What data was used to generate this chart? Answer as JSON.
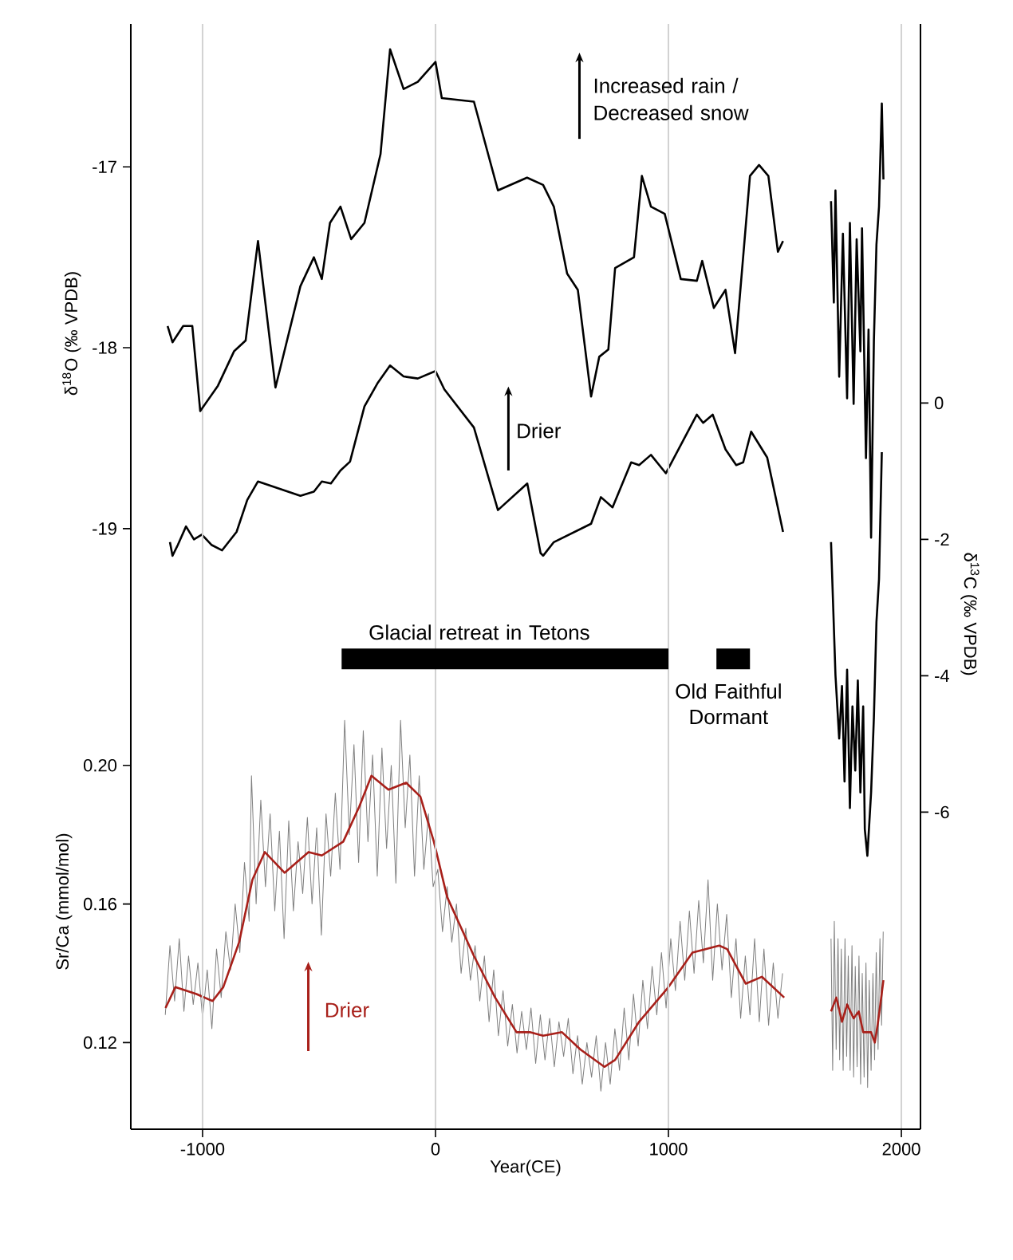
{
  "chart_data": {
    "type": "line",
    "xlabel": "Year(CE)",
    "ylabel": "δ$^{18}$O (‰ VPDB)",
    "y2label": "δ$^{13}$C (‰ VPDB)",
    "y3label": "Sr/Ca (mmol/mol)",
    "xlim": [
      -1308,
      2082
    ],
    "xticks": [
      -1000,
      0,
      1000,
      2000
    ],
    "ylim": [
      -22.32,
      -16.21
    ],
    "yticks": [
      -17,
      -18,
      -19
    ],
    "y2lim": [
      -10.65,
      5.56
    ],
    "y2ticks": [
      0,
      -2,
      -4,
      -6
    ],
    "y3lim": [
      0.095,
      0.414
    ],
    "y3ticks": [
      {
        "value": 0.2,
        "label": "0.20"
      },
      0.16,
      0.12
    ],
    "grid": "x",
    "series": [
      {
        "color": "#000000",
        "axis": "y",
        "x": [
          -1150,
          -1129,
          -1083,
          -1044,
          -1010,
          -934,
          -865,
          -815,
          -762,
          -687,
          -580,
          -522,
          -488,
          -453,
          -408,
          -362,
          -305,
          -236,
          -195,
          -137,
          -76,
          0,
          27,
          165,
          268,
          393,
          462,
          508,
          565,
          611,
          668,
          703,
          742,
          771,
          852,
          886,
          925,
          984,
          1053,
          1122,
          1145,
          1195,
          1245,
          1286,
          1350,
          1389,
          1429,
          1470,
          1492,
          1600,
          1698,
          1710,
          1717,
          1733,
          1749,
          1767,
          1779,
          1795,
          1808,
          1824,
          1831,
          1848,
          1859,
          1870,
          1882,
          1893,
          1904,
          1916,
          1923
        ],
        "values": [
          -17.88,
          -17.97,
          -17.88,
          -17.88,
          -18.35,
          -18.21,
          -18.02,
          -17.96,
          -17.41,
          -18.22,
          -17.66,
          -17.5,
          -17.62,
          -17.31,
          -17.22,
          -17.4,
          -17.31,
          -16.93,
          -16.35,
          -16.57,
          -16.53,
          -16.42,
          -16.62,
          -16.64,
          -17.13,
          -17.06,
          -17.1,
          -17.22,
          -17.59,
          -17.68,
          -18.27,
          -18.05,
          -18.01,
          -17.56,
          -17.5,
          -17.05,
          -17.22,
          -17.26,
          -17.62,
          -17.63,
          -17.52,
          -17.78,
          -17.68,
          -18.03,
          -17.05,
          -16.99,
          -17.05,
          -17.47,
          -17.41,
          null,
          -17.19,
          -17.75,
          -17.13,
          -18.16,
          -17.37,
          -18.28,
          -17.31,
          -18.31,
          -17.4,
          -18.02,
          -17.34,
          -18.61,
          -17.9,
          -19.05,
          -17.96,
          -17.43,
          -17.22,
          -16.65,
          -17.07
        ]
      },
      {
        "color": "#000000",
        "axis": "y2",
        "x": [
          -1140,
          -1129,
          -1106,
          -1071,
          -1037,
          -1003,
          -962,
          -916,
          -854,
          -808,
          -762,
          -580,
          -522,
          -488,
          -449,
          -408,
          -367,
          -305,
          -247,
          -195,
          -137,
          -76,
          0,
          38,
          165,
          268,
          394,
          451,
          462,
          508,
          668,
          710,
          760,
          840,
          874,
          925,
          989,
          1122,
          1149,
          1190,
          1245,
          1291,
          1321,
          1355,
          1424,
          1492,
          1600,
          1698,
          1717,
          1733,
          1745,
          1756,
          1767,
          1779,
          1790,
          1802,
          1813,
          1824,
          1836,
          1843,
          1854,
          1870,
          1882,
          1893,
          1904,
          1916
        ],
        "values": [
          -2.04,
          -2.24,
          -2.08,
          -1.81,
          -2.0,
          -1.93,
          -2.08,
          -2.16,
          -1.89,
          -1.42,
          -1.15,
          -1.36,
          -1.3,
          -1.15,
          -1.18,
          -0.99,
          -0.86,
          -0.05,
          0.3,
          0.55,
          0.39,
          0.36,
          0.47,
          0.2,
          -0.36,
          -1.57,
          -1.18,
          -2.2,
          -2.24,
          -2.04,
          -1.77,
          -1.38,
          -1.53,
          -0.87,
          -0.91,
          -0.76,
          -1.03,
          -0.17,
          -0.29,
          -0.17,
          -0.68,
          -0.91,
          -0.87,
          -0.42,
          -0.8,
          -1.89,
          null,
          -2.04,
          -3.99,
          -4.92,
          -4.15,
          -5.55,
          -3.91,
          -5.94,
          -4.45,
          -5.39,
          -4.07,
          -5.71,
          -4.45,
          -6.25,
          -6.64,
          -5.71,
          -4.61,
          -3.21,
          -2.58,
          -0.72
        ]
      },
      {
        "color": "#7f7f7f",
        "axis": "y3",
        "x": [
          -1160,
          -1140,
          -1120,
          -1100,
          -1080,
          -1060,
          -1040,
          -1020,
          -1000,
          -980,
          -960,
          -940,
          -920,
          -900,
          -880,
          -860,
          -840,
          -820,
          -800,
          -790,
          -770,
          -750,
          -730,
          -710,
          -690,
          -670,
          -650,
          -630,
          -610,
          -590,
          -570,
          -550,
          -530,
          -510,
          -490,
          -470,
          -450,
          -430,
          -410,
          -390,
          -370,
          -350,
          -330,
          -310,
          -290,
          -270,
          -250,
          -230,
          -210,
          -190,
          -170,
          -150,
          -130,
          -110,
          -90,
          -70,
          -50,
          -30,
          -10,
          10,
          30,
          50,
          70,
          90,
          110,
          130,
          150,
          170,
          190,
          210,
          230,
          250,
          270,
          290,
          310,
          330,
          350,
          370,
          390,
          410,
          430,
          450,
          470,
          490,
          510,
          530,
          550,
          570,
          590,
          610,
          630,
          650,
          670,
          690,
          710,
          730,
          750,
          770,
          790,
          810,
          830,
          850,
          870,
          890,
          910,
          930,
          950,
          970,
          990,
          1010,
          1030,
          1050,
          1070,
          1090,
          1110,
          1130,
          1150,
          1170,
          1190,
          1210,
          1230,
          1250,
          1270,
          1290,
          1310,
          1330,
          1350,
          1370,
          1390,
          1410,
          1430,
          1450,
          1470,
          1490,
          1600,
          1698,
          1705,
          1712,
          1720,
          1728,
          1735,
          1742,
          1750,
          1758,
          1765,
          1772,
          1780,
          1788,
          1795,
          1802,
          1810,
          1818,
          1825,
          1832,
          1840,
          1848,
          1855,
          1862,
          1870,
          1878,
          1885,
          1892,
          1900,
          1908,
          1915,
          1922
        ],
        "values": [
          0.128,
          0.148,
          0.132,
          0.15,
          0.129,
          0.145,
          0.131,
          0.143,
          0.127,
          0.141,
          0.124,
          0.147,
          0.133,
          0.152,
          0.141,
          0.16,
          0.146,
          0.172,
          0.155,
          0.197,
          0.16,
          0.19,
          0.165,
          0.186,
          0.158,
          0.181,
          0.15,
          0.184,
          0.158,
          0.178,
          0.163,
          0.185,
          0.16,
          0.182,
          0.151,
          0.186,
          0.168,
          0.192,
          0.17,
          0.213,
          0.18,
          0.206,
          0.172,
          0.21,
          0.178,
          0.203,
          0.168,
          0.205,
          0.176,
          0.2,
          0.166,
          0.213,
          0.182,
          0.203,
          0.168,
          0.197,
          0.17,
          0.186,
          0.165,
          0.17,
          0.152,
          0.165,
          0.149,
          0.16,
          0.14,
          0.153,
          0.138,
          0.148,
          0.132,
          0.145,
          0.126,
          0.141,
          0.122,
          0.135,
          0.119,
          0.131,
          0.117,
          0.129,
          0.118,
          0.13,
          0.114,
          0.128,
          0.115,
          0.127,
          0.113,
          0.126,
          0.116,
          0.127,
          0.111,
          0.122,
          0.108,
          0.12,
          0.11,
          0.122,
          0.106,
          0.12,
          0.108,
          0.124,
          0.112,
          0.13,
          0.115,
          0.134,
          0.119,
          0.138,
          0.124,
          0.142,
          0.128,
          0.146,
          0.13,
          0.15,
          0.135,
          0.155,
          0.138,
          0.158,
          0.14,
          0.161,
          0.143,
          0.167,
          0.138,
          0.16,
          0.141,
          0.157,
          0.133,
          0.15,
          0.127,
          0.145,
          0.128,
          0.15,
          0.126,
          0.147,
          0.125,
          0.143,
          0.127,
          0.14,
          null,
          0.15,
          0.112,
          0.155,
          0.118,
          0.15,
          0.115,
          0.147,
          0.112,
          0.15,
          0.116,
          0.145,
          0.112,
          0.148,
          0.11,
          0.142,
          0.113,
          0.145,
          0.108,
          0.14,
          0.11,
          0.143,
          0.107,
          0.138,
          0.112,
          0.14,
          0.115,
          0.146,
          0.118,
          0.15,
          0.125,
          0.152
        ]
      },
      {
        "color": "#000000",
        "axis": "y",
        "x": [
          -403,
          1000,
          1100,
          1206,
          1350
        ],
        "values": [
          -19.72,
          -19.72,
          null,
          -19.72,
          -19.72
        ]
      },
      {
        "color": "#a8201a",
        "axis": "y3",
        "x": [
          -1159,
          -1117,
          -1026,
          -957,
          -911,
          -843,
          -786,
          -733,
          -648,
          -545,
          -488,
          -396,
          -328,
          -275,
          -202,
          -126,
          -65,
          -7,
          50,
          165,
          256,
          348,
          405,
          462,
          543,
          622,
          725,
          771,
          874,
          1000,
          1103,
          1218,
          1252,
          1332,
          1401,
          1497,
          1600,
          1698,
          1721,
          1745,
          1767,
          1795,
          1817,
          1836,
          1870,
          1886,
          1900,
          1923
        ],
        "values": [
          0.13,
          0.136,
          0.134,
          0.132,
          0.136,
          0.149,
          0.167,
          0.175,
          0.169,
          0.175,
          0.174,
          0.178,
          0.188,
          0.197,
          0.193,
          0.195,
          0.191,
          0.178,
          0.162,
          0.145,
          0.133,
          0.123,
          0.123,
          0.122,
          0.123,
          0.118,
          0.113,
          0.115,
          0.126,
          0.136,
          0.146,
          0.148,
          0.147,
          0.137,
          0.139,
          0.133,
          null,
          0.129,
          0.133,
          0.126,
          0.131,
          0.127,
          0.129,
          0.123,
          0.123,
          0.12,
          0.126,
          0.138
        ]
      }
    ],
    "annotations": [
      "Increased rain / Decreased snow",
      "Drier",
      "Drier",
      "Glacial retreat in Tetons",
      "Old Faithful Dormant"
    ]
  }
}
